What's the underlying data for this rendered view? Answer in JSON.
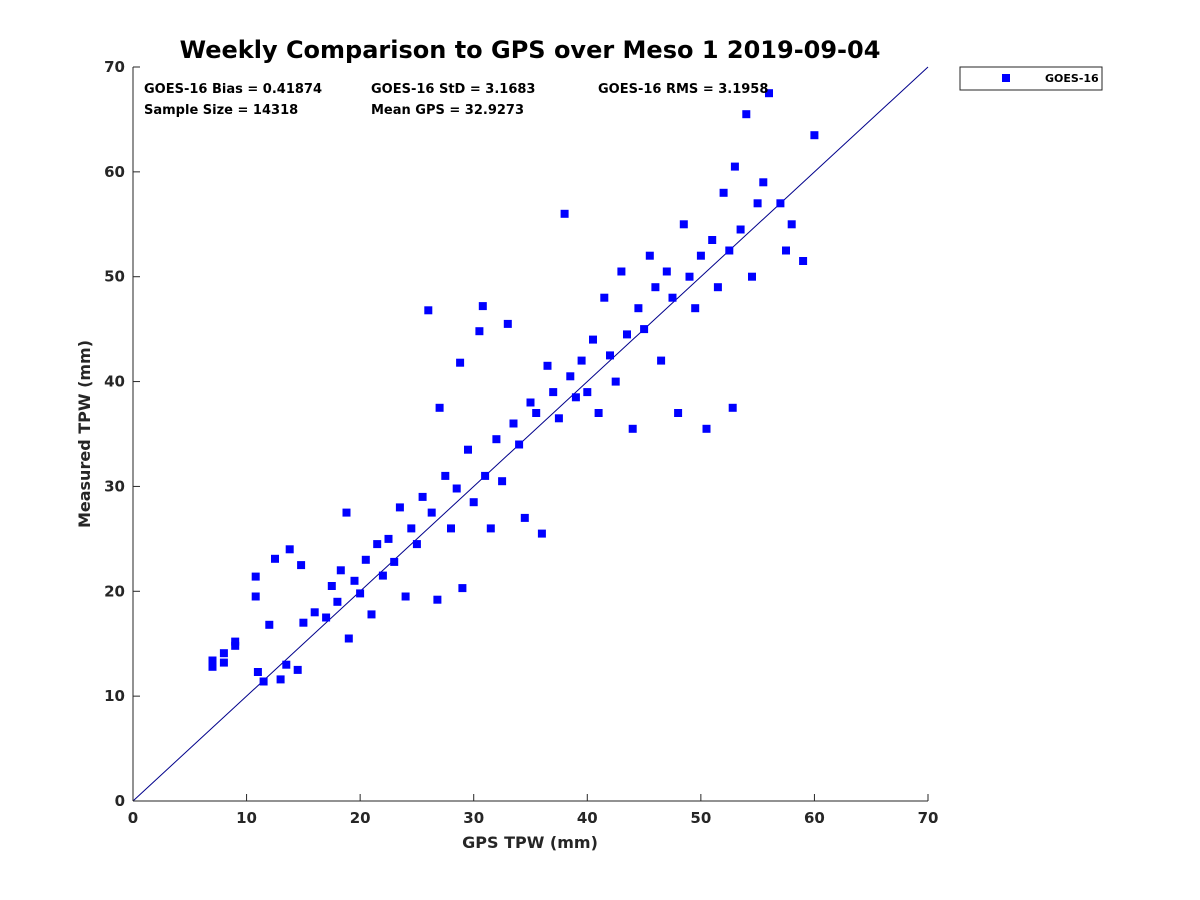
{
  "chart_data": {
    "type": "scatter",
    "title": "Weekly Comparison to GPS over Meso 1 2019-09-04",
    "xlabel": "GPS TPW (mm)",
    "ylabel": "Measured TPW (mm)",
    "xlim": [
      0,
      70
    ],
    "ylim": [
      0,
      70
    ],
    "x_ticks": [
      "0",
      "10",
      "20",
      "30",
      "40",
      "50",
      "60",
      "70"
    ],
    "y_ticks": [
      "0",
      "10",
      "20",
      "30",
      "40",
      "50",
      "60",
      "70"
    ],
    "grid": false,
    "legend_position": "outside-top-right",
    "reference_line": {
      "type": "one-to-one",
      "from": [
        0,
        0
      ],
      "to": [
        70,
        70
      ],
      "color": "#00008b"
    },
    "stats": {
      "bias": "GOES-16 Bias = 0.41874",
      "std": "GOES-16 StD = 3.1683",
      "rms": "GOES-16 RMS = 3.1958",
      "sample_size": "Sample Size = 14318",
      "mean_gps": "Mean GPS = 32.9273"
    },
    "series": [
      {
        "name": "GOES-16",
        "color": "#0000ff",
        "marker": "square",
        "points": [
          [
            7,
            13.4
          ],
          [
            7,
            12.8
          ],
          [
            8,
            13.2
          ],
          [
            8,
            14.1
          ],
          [
            9,
            15.2
          ],
          [
            9,
            14.8
          ],
          [
            10.8,
            21.4
          ],
          [
            10.8,
            19.5
          ],
          [
            11,
            12.3
          ],
          [
            11.5,
            11.4
          ],
          [
            12,
            16.8
          ],
          [
            12.5,
            23.1
          ],
          [
            13,
            11.6
          ],
          [
            13.5,
            13
          ],
          [
            13.8,
            24
          ],
          [
            14.5,
            12.5
          ],
          [
            14.8,
            22.5
          ],
          [
            15,
            17
          ],
          [
            16,
            18
          ],
          [
            17,
            17.5
          ],
          [
            17.5,
            20.5
          ],
          [
            18,
            19
          ],
          [
            18.3,
            22
          ],
          [
            18.8,
            27.5
          ],
          [
            19,
            15.5
          ],
          [
            19.5,
            21
          ],
          [
            20,
            19.8
          ],
          [
            20.5,
            23
          ],
          [
            21,
            17.8
          ],
          [
            21.5,
            24.5
          ],
          [
            22,
            21.5
          ],
          [
            22.5,
            25
          ],
          [
            23,
            22.8
          ],
          [
            23.5,
            28
          ],
          [
            24,
            19.5
          ],
          [
            24.5,
            26
          ],
          [
            25,
            24.5
          ],
          [
            25.5,
            29
          ],
          [
            26,
            46.8
          ],
          [
            26.3,
            27.5
          ],
          [
            26.8,
            19.2
          ],
          [
            27,
            37.5
          ],
          [
            27.5,
            31
          ],
          [
            28,
            26
          ],
          [
            28.5,
            29.8
          ],
          [
            28.8,
            41.8
          ],
          [
            29,
            20.3
          ],
          [
            29.5,
            33.5
          ],
          [
            30,
            28.5
          ],
          [
            30.5,
            44.8
          ],
          [
            30.8,
            47.2
          ],
          [
            31,
            31
          ],
          [
            31.5,
            26
          ],
          [
            32,
            34.5
          ],
          [
            32.5,
            30.5
          ],
          [
            33,
            45.5
          ],
          [
            33.5,
            36
          ],
          [
            34,
            34
          ],
          [
            34.5,
            27
          ],
          [
            35,
            38
          ],
          [
            35.5,
            37
          ],
          [
            36,
            25.5
          ],
          [
            36.5,
            41.5
          ],
          [
            37,
            39
          ],
          [
            37.5,
            36.5
          ],
          [
            38,
            56
          ],
          [
            38.5,
            40.5
          ],
          [
            39,
            38.5
          ],
          [
            39.5,
            42
          ],
          [
            40,
            39
          ],
          [
            40.5,
            44
          ],
          [
            41,
            37
          ],
          [
            41.5,
            48
          ],
          [
            42,
            42.5
          ],
          [
            42.5,
            40
          ],
          [
            43,
            50.5
          ],
          [
            43.5,
            44.5
          ],
          [
            44,
            35.5
          ],
          [
            44.5,
            47
          ],
          [
            45,
            45
          ],
          [
            45.5,
            52
          ],
          [
            46,
            49
          ],
          [
            46.5,
            42
          ],
          [
            47,
            50.5
          ],
          [
            47.5,
            48
          ],
          [
            48,
            37
          ],
          [
            48.5,
            55
          ],
          [
            49,
            50
          ],
          [
            49.5,
            47
          ],
          [
            50,
            52
          ],
          [
            50.5,
            35.5
          ],
          [
            51,
            53.5
          ],
          [
            51.5,
            49
          ],
          [
            52,
            58
          ],
          [
            52.5,
            52.5
          ],
          [
            52.8,
            37.5
          ],
          [
            53,
            60.5
          ],
          [
            53.5,
            54.5
          ],
          [
            54,
            65.5
          ],
          [
            54.5,
            50
          ],
          [
            55,
            57
          ],
          [
            55.5,
            59
          ],
          [
            56,
            67.5
          ],
          [
            57,
            57
          ],
          [
            57.5,
            52.5
          ],
          [
            58,
            55
          ],
          [
            59,
            51.5
          ],
          [
            60,
            63.5
          ]
        ]
      }
    ]
  }
}
